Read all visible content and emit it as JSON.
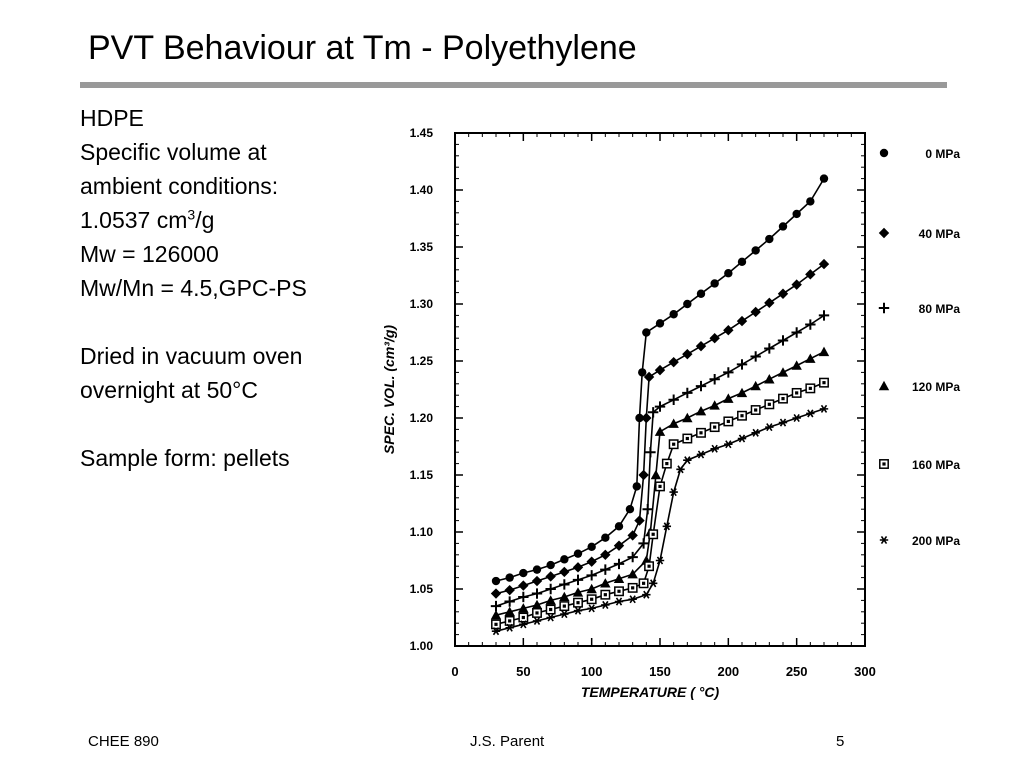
{
  "slide": {
    "title": "PVT Behaviour at Tm - Polyethylene",
    "notes": {
      "material": "HDPE",
      "line2": "Specific volume at",
      "line3": "ambient conditions:",
      "volume_value": "1.0537 cm",
      "volume_sup": "3",
      "volume_unit": "/g",
      "mw": "Mw = 126000",
      "mw_mn": "Mw/Mn = 4.5,GPC-PS",
      "dried1": "Dried in vacuum oven",
      "dried2": "overnight at 50°C",
      "sample": "Sample form: pellets"
    },
    "footer": {
      "course": "CHEE 890",
      "author": "J.S. Parent",
      "page": "5"
    }
  },
  "colors": {
    "rule": "#999999",
    "ink": "#000000"
  },
  "chart_data": {
    "type": "line",
    "xlabel": "TEMPERATURE ( °C)",
    "ylabel": "SPEC. VOL. (cm³/g)",
    "xlim": [
      0,
      300
    ],
    "ylim": [
      1.0,
      1.45
    ],
    "xticks": [
      "0",
      "50",
      "100",
      "150",
      "200",
      "250",
      "300"
    ],
    "yticks": [
      "1.00",
      "1.05",
      "1.10",
      "1.15",
      "1.20",
      "1.25",
      "1.30",
      "1.35",
      "1.40",
      "1.45"
    ],
    "legend_position": "right",
    "series": [
      {
        "name": "0 MPa",
        "marker": "circle",
        "points": [
          [
            30,
            1.057
          ],
          [
            40,
            1.06
          ],
          [
            50,
            1.064
          ],
          [
            60,
            1.067
          ],
          [
            70,
            1.071
          ],
          [
            80,
            1.076
          ],
          [
            90,
            1.081
          ],
          [
            100,
            1.087
          ],
          [
            110,
            1.095
          ],
          [
            120,
            1.105
          ],
          [
            128,
            1.12
          ],
          [
            133,
            1.14
          ],
          [
            135,
            1.2
          ],
          [
            137,
            1.24
          ],
          [
            140,
            1.275
          ],
          [
            150,
            1.283
          ],
          [
            160,
            1.291
          ],
          [
            170,
            1.3
          ],
          [
            180,
            1.309
          ],
          [
            190,
            1.318
          ],
          [
            200,
            1.327
          ],
          [
            210,
            1.337
          ],
          [
            220,
            1.347
          ],
          [
            230,
            1.357
          ],
          [
            240,
            1.368
          ],
          [
            250,
            1.379
          ],
          [
            260,
            1.39
          ],
          [
            270,
            1.41
          ]
        ]
      },
      {
        "name": "40 MPa",
        "marker": "diamond",
        "points": [
          [
            30,
            1.046
          ],
          [
            40,
            1.049
          ],
          [
            50,
            1.053
          ],
          [
            60,
            1.057
          ],
          [
            70,
            1.061
          ],
          [
            80,
            1.065
          ],
          [
            90,
            1.069
          ],
          [
            100,
            1.074
          ],
          [
            110,
            1.08
          ],
          [
            120,
            1.088
          ],
          [
            130,
            1.097
          ],
          [
            135,
            1.11
          ],
          [
            138,
            1.15
          ],
          [
            140,
            1.2
          ],
          [
            142,
            1.236
          ],
          [
            150,
            1.242
          ],
          [
            160,
            1.249
          ],
          [
            170,
            1.256
          ],
          [
            180,
            1.263
          ],
          [
            190,
            1.27
          ],
          [
            200,
            1.277
          ],
          [
            210,
            1.285
          ],
          [
            220,
            1.293
          ],
          [
            230,
            1.301
          ],
          [
            240,
            1.309
          ],
          [
            250,
            1.317
          ],
          [
            260,
            1.326
          ],
          [
            270,
            1.335
          ]
        ]
      },
      {
        "name": "80 MPa",
        "marker": "plus",
        "points": [
          [
            30,
            1.035
          ],
          [
            40,
            1.039
          ],
          [
            50,
            1.043
          ],
          [
            60,
            1.046
          ],
          [
            70,
            1.05
          ],
          [
            80,
            1.054
          ],
          [
            90,
            1.058
          ],
          [
            100,
            1.062
          ],
          [
            110,
            1.067
          ],
          [
            120,
            1.072
          ],
          [
            130,
            1.078
          ],
          [
            138,
            1.09
          ],
          [
            141,
            1.12
          ],
          [
            143,
            1.17
          ],
          [
            145,
            1.205
          ],
          [
            150,
            1.21
          ],
          [
            160,
            1.216
          ],
          [
            170,
            1.222
          ],
          [
            180,
            1.228
          ],
          [
            190,
            1.234
          ],
          [
            200,
            1.24
          ],
          [
            210,
            1.247
          ],
          [
            220,
            1.254
          ],
          [
            230,
            1.261
          ],
          [
            240,
            1.268
          ],
          [
            250,
            1.275
          ],
          [
            260,
            1.282
          ],
          [
            270,
            1.29
          ]
        ]
      },
      {
        "name": "120 MPa",
        "marker": "triangle",
        "points": [
          [
            30,
            1.027
          ],
          [
            40,
            1.03
          ],
          [
            50,
            1.033
          ],
          [
            60,
            1.036
          ],
          [
            70,
            1.04
          ],
          [
            80,
            1.043
          ],
          [
            90,
            1.047
          ],
          [
            100,
            1.05
          ],
          [
            110,
            1.055
          ],
          [
            120,
            1.059
          ],
          [
            130,
            1.063
          ],
          [
            140,
            1.075
          ],
          [
            143,
            1.1
          ],
          [
            147,
            1.15
          ],
          [
            150,
            1.188
          ],
          [
            160,
            1.195
          ],
          [
            170,
            1.2
          ],
          [
            180,
            1.206
          ],
          [
            190,
            1.211
          ],
          [
            200,
            1.217
          ],
          [
            210,
            1.222
          ],
          [
            220,
            1.228
          ],
          [
            230,
            1.234
          ],
          [
            240,
            1.24
          ],
          [
            250,
            1.246
          ],
          [
            260,
            1.252
          ],
          [
            270,
            1.258
          ]
        ]
      },
      {
        "name": "160 MPa",
        "marker": "square",
        "points": [
          [
            30,
            1.019
          ],
          [
            40,
            1.022
          ],
          [
            50,
            1.025
          ],
          [
            60,
            1.029
          ],
          [
            70,
            1.032
          ],
          [
            80,
            1.035
          ],
          [
            90,
            1.038
          ],
          [
            100,
            1.041
          ],
          [
            110,
            1.045
          ],
          [
            120,
            1.048
          ],
          [
            130,
            1.051
          ],
          [
            138,
            1.055
          ],
          [
            142,
            1.07
          ],
          [
            145,
            1.098
          ],
          [
            150,
            1.14
          ],
          [
            155,
            1.16
          ],
          [
            160,
            1.177
          ],
          [
            170,
            1.182
          ],
          [
            180,
            1.187
          ],
          [
            190,
            1.192
          ],
          [
            200,
            1.197
          ],
          [
            210,
            1.202
          ],
          [
            220,
            1.207
          ],
          [
            230,
            1.212
          ],
          [
            240,
            1.217
          ],
          [
            250,
            1.222
          ],
          [
            260,
            1.226
          ],
          [
            270,
            1.231
          ]
        ]
      },
      {
        "name": "200 MPa",
        "marker": "star",
        "points": [
          [
            30,
            1.013
          ],
          [
            40,
            1.016
          ],
          [
            50,
            1.019
          ],
          [
            60,
            1.022
          ],
          [
            70,
            1.025
          ],
          [
            80,
            1.028
          ],
          [
            90,
            1.031
          ],
          [
            100,
            1.033
          ],
          [
            110,
            1.036
          ],
          [
            120,
            1.039
          ],
          [
            130,
            1.041
          ],
          [
            140,
            1.045
          ],
          [
            145,
            1.055
          ],
          [
            150,
            1.075
          ],
          [
            155,
            1.105
          ],
          [
            160,
            1.135
          ],
          [
            165,
            1.155
          ],
          [
            170,
            1.163
          ],
          [
            180,
            1.168
          ],
          [
            190,
            1.173
          ],
          [
            200,
            1.177
          ],
          [
            210,
            1.182
          ],
          [
            220,
            1.187
          ],
          [
            230,
            1.192
          ],
          [
            240,
            1.196
          ],
          [
            250,
            1.2
          ],
          [
            260,
            1.204
          ],
          [
            270,
            1.208
          ]
        ]
      }
    ]
  }
}
